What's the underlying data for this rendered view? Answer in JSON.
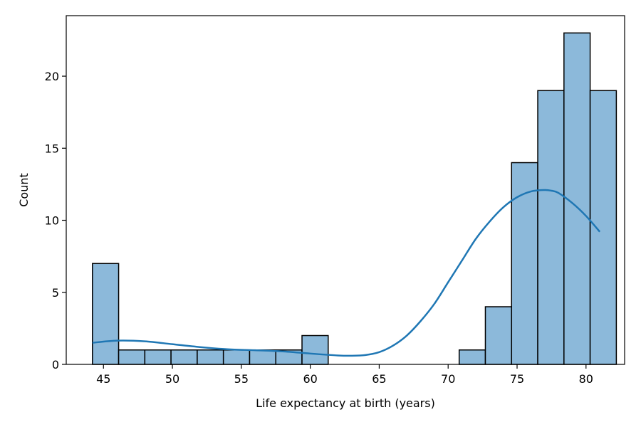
{
  "chart_data": {
    "type": "bar",
    "title": "",
    "xlabel": "Life expectancy at birth (years)",
    "ylabel": "Count",
    "xlim": [
      42.3,
      82.8
    ],
    "ylim": [
      0,
      24.2
    ],
    "x_ticks": [
      45,
      50,
      55,
      60,
      65,
      70,
      75,
      80
    ],
    "y_ticks": [
      0,
      5,
      10,
      15,
      20
    ],
    "grid": false,
    "legend": "none",
    "bar_color": "#8cb9da",
    "edge_color": "#000000",
    "kde_color": "#1f77b4",
    "bins": [
      {
        "x0": 44.2,
        "x1": 46.1,
        "count": 7
      },
      {
        "x0": 46.1,
        "x1": 48.0,
        "count": 1
      },
      {
        "x0": 48.0,
        "x1": 49.9,
        "count": 1
      },
      {
        "x0": 49.9,
        "x1": 51.8,
        "count": 1
      },
      {
        "x0": 51.8,
        "x1": 53.7,
        "count": 1
      },
      {
        "x0": 53.7,
        "x1": 55.6,
        "count": 1
      },
      {
        "x0": 55.6,
        "x1": 57.5,
        "count": 1
      },
      {
        "x0": 57.5,
        "x1": 59.4,
        "count": 1
      },
      {
        "x0": 59.4,
        "x1": 61.3,
        "count": 2
      },
      {
        "x0": 61.3,
        "x1": 63.2,
        "count": 0
      },
      {
        "x0": 63.2,
        "x1": 65.1,
        "count": 0
      },
      {
        "x0": 65.1,
        "x1": 67.0,
        "count": 0
      },
      {
        "x0": 67.0,
        "x1": 68.9,
        "count": 0
      },
      {
        "x0": 68.9,
        "x1": 70.8,
        "count": 0
      },
      {
        "x0": 70.8,
        "x1": 72.7,
        "count": 1
      },
      {
        "x0": 72.7,
        "x1": 74.6,
        "count": 4
      },
      {
        "x0": 74.6,
        "x1": 76.5,
        "count": 14
      },
      {
        "x0": 76.5,
        "x1": 78.4,
        "count": 19
      },
      {
        "x0": 78.4,
        "x1": 80.3,
        "count": 23
      },
      {
        "x0": 80.3,
        "x1": 82.2,
        "count": 19
      }
    ],
    "kde": {
      "x": [
        44.2,
        46,
        48,
        50,
        52,
        54,
        56,
        58,
        60,
        62,
        63,
        64,
        65,
        66,
        67,
        68,
        69,
        70,
        71,
        72,
        73,
        74,
        75,
        76,
        77,
        77.5,
        78,
        79,
        80,
        81
      ],
      "y": [
        1.5,
        1.65,
        1.6,
        1.4,
        1.2,
        1.05,
        0.98,
        0.9,
        0.75,
        0.62,
        0.6,
        0.65,
        0.85,
        1.3,
        2.0,
        3.0,
        4.2,
        5.7,
        7.2,
        8.7,
        9.9,
        10.9,
        11.6,
        12.0,
        12.1,
        12.05,
        11.9,
        11.2,
        10.3,
        9.2
      ]
    }
  }
}
